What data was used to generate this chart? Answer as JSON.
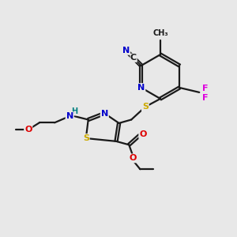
{
  "bg_color": "#e8e8e8",
  "bond_color": "#1a1a1a",
  "colors": {
    "N": "#0000cc",
    "S": "#ccaa00",
    "O": "#dd0000",
    "F": "#dd00dd",
    "H_teal": "#008080",
    "C": "#1a1a1a"
  }
}
